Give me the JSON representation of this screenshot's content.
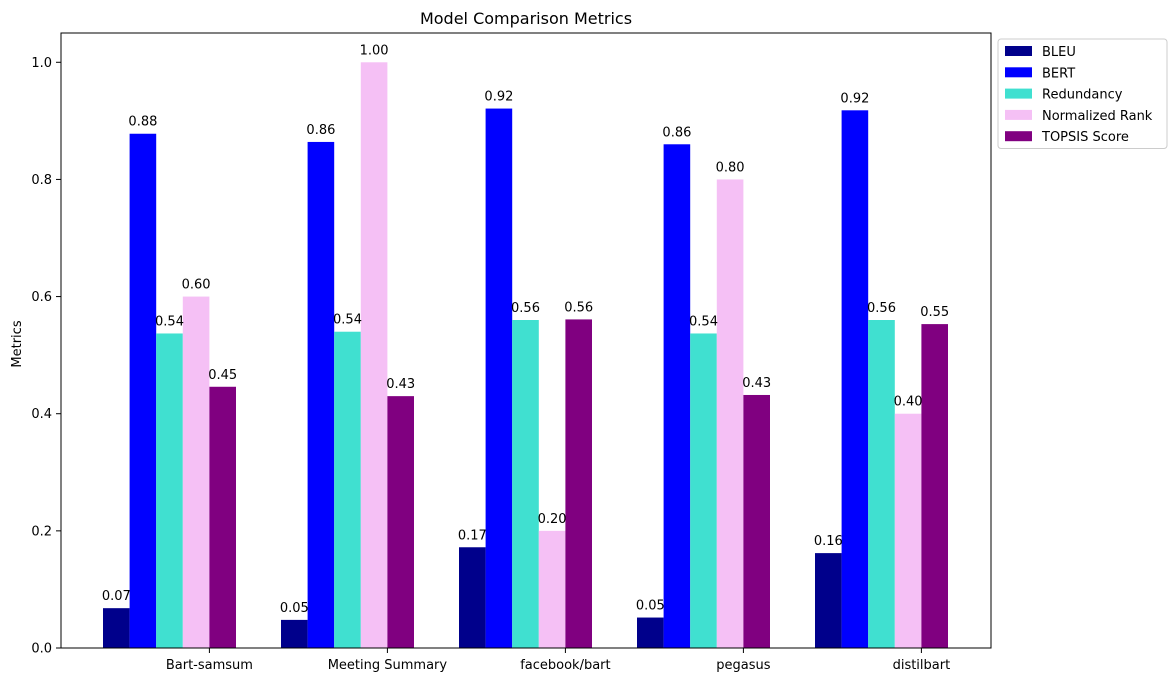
{
  "chart_data": {
    "type": "bar",
    "title": "Model Comparison Metrics",
    "xlabel": "",
    "ylabel": "Metrics",
    "ylim": [
      0,
      1.05
    ],
    "yticks": [
      "0.0",
      "0.2",
      "0.4",
      "0.6",
      "0.8",
      "1.0"
    ],
    "grid": false,
    "legend_position": "outside-top-right",
    "categories": [
      "Bart-samsum",
      "Meeting Summary",
      "facebook/bart",
      "pegasus",
      "distilbart"
    ],
    "series": [
      {
        "name": "BLEU",
        "color": "#00008b",
        "values": [
          0.068,
          0.048,
          0.172,
          0.052,
          0.162
        ],
        "labels": [
          "0.07",
          "0.05",
          "0.17",
          "0.05",
          "0.16"
        ]
      },
      {
        "name": "BERT",
        "color": "#0000ff",
        "values": [
          0.878,
          0.864,
          0.921,
          0.86,
          0.918
        ],
        "labels": [
          "0.88",
          "0.86",
          "0.92",
          "0.86",
          "0.92"
        ]
      },
      {
        "name": "Redundancy",
        "color": "#40e0d0",
        "values": [
          0.537,
          0.54,
          0.56,
          0.537,
          0.56
        ],
        "labels": [
          "0.54",
          "0.54",
          "0.56",
          "0.54",
          "0.56"
        ]
      },
      {
        "name": "Normalized Rank",
        "color": "#f5c0f5",
        "values": [
          0.6,
          1.0,
          0.2,
          0.8,
          0.4
        ],
        "labels": [
          "0.60",
          "1.00",
          "0.20",
          "0.80",
          "0.40"
        ]
      },
      {
        "name": "TOPSIS Score",
        "color": "#800080",
        "values": [
          0.446,
          0.43,
          0.561,
          0.432,
          0.553
        ],
        "labels": [
          "0.45",
          "0.43",
          "0.56",
          "0.43",
          "0.55"
        ]
      }
    ]
  }
}
